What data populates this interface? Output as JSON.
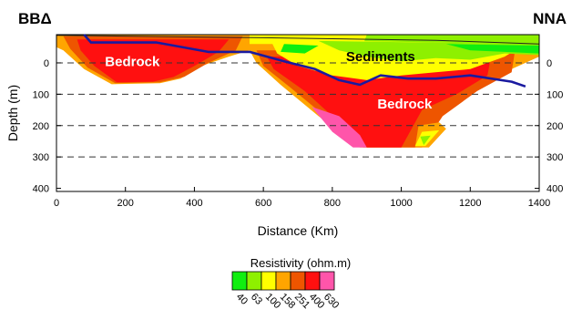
{
  "chart_data": {
    "type": "heatmap",
    "title": "",
    "left_station": "BBΔ",
    "right_station": "NNA",
    "xlabel": "Distance (Km)",
    "ylabel": "Depth (m)",
    "xlim": [
      0,
      1400
    ],
    "ylim": [
      -90,
      410
    ],
    "x_ticks": [
      "0",
      "200",
      "400",
      "600",
      "800",
      "1000",
      "1200",
      "1400"
    ],
    "y_ticks_left": [
      "0",
      "100",
      "200",
      "300",
      "400"
    ],
    "y_ticks_right": [
      "0",
      "100",
      "200",
      "300",
      "400"
    ],
    "dashed_reference_depths": [
      0,
      100,
      200,
      300
    ],
    "annotations": [
      {
        "text": "Bedrock",
        "x": 220,
        "y": 10,
        "color": "#ffffff"
      },
      {
        "text": "Sediments",
        "x": 940,
        "y": -5,
        "color": "#000000"
      },
      {
        "text": "Bedrock",
        "x": 1010,
        "y": 145,
        "color": "#ffffff"
      }
    ],
    "boundary_line": {
      "name": "",
      "color": "#1a1aa0",
      "points": [
        [
          80,
          -90
        ],
        [
          100,
          -65
        ],
        [
          290,
          -65
        ],
        [
          340,
          -55
        ],
        [
          440,
          -35
        ],
        [
          560,
          -35
        ],
        [
          660,
          -5
        ],
        [
          750,
          20
        ],
        [
          820,
          55
        ],
        [
          880,
          70
        ],
        [
          940,
          40
        ],
        [
          1020,
          50
        ],
        [
          1100,
          50
        ],
        [
          1200,
          40
        ],
        [
          1320,
          60
        ],
        [
          1360,
          75
        ]
      ]
    },
    "legend": {
      "title": "Resistivity (ohm.m)",
      "labels": [
        "40",
        "63",
        "100",
        "158",
        "251",
        "400",
        "630"
      ],
      "colors": [
        "#10ee10",
        "#8ef000",
        "#ffff00",
        "#ffa500",
        "#ee5500",
        "#ff1010",
        "#ff55aa"
      ]
    }
  }
}
